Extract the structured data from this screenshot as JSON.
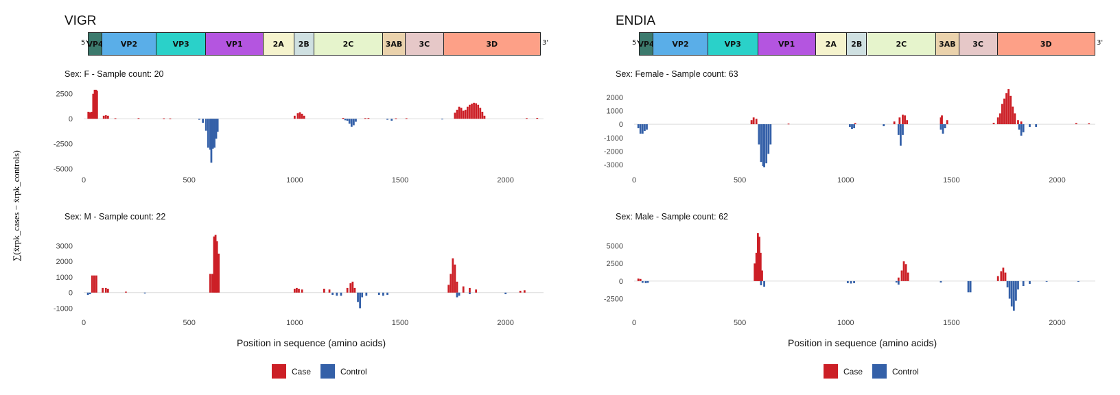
{
  "y_axis_label": "∑(x̄rpk_cases − x̄rpk_controls)",
  "colors": {
    "case": "#cc1f26",
    "control": "#3460a8"
  },
  "genome_map": {
    "end5": "5'",
    "end3": "3'",
    "segments": [
      {
        "label": "VP4",
        "start": 0,
        "end": 69,
        "color": "#3c7a6d"
      },
      {
        "label": "VP2",
        "start": 69,
        "end": 331,
        "color": "#5aaee8"
      },
      {
        "label": "VP3",
        "start": 331,
        "end": 569,
        "color": "#2ad1c9"
      },
      {
        "label": "VP1",
        "start": 569,
        "end": 845,
        "color": "#b455e0"
      },
      {
        "label": "2A",
        "start": 845,
        "end": 993,
        "color": "#f5f3cd"
      },
      {
        "label": "2B",
        "start": 993,
        "end": 1090,
        "color": "#cfe0e1"
      },
      {
        "label": "2C",
        "start": 1090,
        "end": 1420,
        "color": "#e6f4cc"
      },
      {
        "label": "3AB",
        "start": 1420,
        "end": 1530,
        "color": "#ead2ac"
      },
      {
        "label": "3C",
        "start": 1530,
        "end": 1713,
        "color": "#e6c8c8"
      },
      {
        "label": "3D",
        "start": 1713,
        "end": 2180,
        "color": "#fda087"
      }
    ]
  },
  "panels": [
    {
      "title": "VIGR",
      "xlabel": "Position in sequence (amino acids)",
      "legend": [
        {
          "label": "Case",
          "key": "case"
        },
        {
          "label": "Control",
          "key": "control"
        }
      ],
      "subplots": [
        {
          "subtitle": "Sex: F - Sample count: 20",
          "ylim": [
            -5000,
            3100
          ],
          "yticks": [
            2500,
            0,
            -2500,
            -5000
          ]
        },
        {
          "subtitle": "Sex: M - Sample count: 22",
          "ylim": [
            -1200,
            3900
          ],
          "yticks": [
            3000,
            2000,
            1000,
            0,
            -1000
          ]
        }
      ]
    },
    {
      "title": "ENDIA",
      "xlabel": "Position in sequence (amino acids)",
      "legend": [
        {
          "label": "Case",
          "key": "case"
        },
        {
          "label": "Control",
          "key": "control"
        }
      ],
      "subplots": [
        {
          "subtitle": "Sex: Female - Sample count: 63",
          "ylim": [
            -3300,
            2700
          ],
          "yticks": [
            2000,
            1000,
            0,
            -1000,
            -2000,
            -3000
          ]
        },
        {
          "subtitle": "Sex: Male - Sample count: 62",
          "ylim": [
            -4300,
            7000
          ],
          "yticks": [
            5000,
            2500,
            0,
            -2500
          ]
        }
      ]
    }
  ],
  "chart_data": [
    {
      "type": "bar",
      "title": "VIGR",
      "subtitle": "Sex: F - Sample count: 20",
      "xlabel": "",
      "ylabel": "∑(x̄rpk_cases − x̄rpk_controls)",
      "xlim": [
        0,
        2180
      ],
      "xticks": [
        0,
        500,
        1000,
        1500,
        2000
      ],
      "ylim": [
        -5000,
        3100
      ],
      "series": [
        {
          "name": "Case",
          "points": [
            [
              22,
              700
            ],
            [
              30,
              650
            ],
            [
              38,
              700
            ],
            [
              45,
              2500
            ],
            [
              52,
              2900
            ],
            [
              58,
              2900
            ],
            [
              63,
              2800
            ],
            [
              95,
              300
            ],
            [
              105,
              350
            ],
            [
              115,
              300
            ],
            [
              150,
              50
            ],
            [
              260,
              60
            ],
            [
              380,
              40
            ],
            [
              410,
              30
            ],
            [
              1000,
              300
            ],
            [
              1015,
              550
            ],
            [
              1025,
              650
            ],
            [
              1035,
              500
            ],
            [
              1045,
              300
            ],
            [
              1230,
              80
            ],
            [
              1335,
              60
            ],
            [
              1350,
              70
            ],
            [
              1480,
              40
            ],
            [
              1530,
              50
            ],
            [
              1760,
              600
            ],
            [
              1770,
              900
            ],
            [
              1780,
              1200
            ],
            [
              1790,
              1100
            ],
            [
              1800,
              800
            ],
            [
              1810,
              900
            ],
            [
              1820,
              1200
            ],
            [
              1830,
              1400
            ],
            [
              1840,
              1500
            ],
            [
              1850,
              1600
            ],
            [
              1860,
              1550
            ],
            [
              1870,
              1400
            ],
            [
              1880,
              1100
            ],
            [
              1890,
              700
            ],
            [
              1900,
              300
            ],
            [
              2100,
              60
            ],
            [
              2150,
              80
            ]
          ]
        },
        {
          "name": "Control",
          "points": [
            [
              548,
              -100
            ],
            [
              565,
              -400
            ],
            [
              580,
              -1200
            ],
            [
              590,
              -2900
            ],
            [
              600,
              -3100
            ],
            [
              605,
              -4400
            ],
            [
              612,
              -3000
            ],
            [
              620,
              -2900
            ],
            [
              628,
              -2000
            ],
            [
              635,
              -1300
            ],
            [
              1240,
              -150
            ],
            [
              1250,
              -200
            ],
            [
              1260,
              -500
            ],
            [
              1270,
              -800
            ],
            [
              1280,
              -650
            ],
            [
              1290,
              -300
            ],
            [
              1440,
              -100
            ],
            [
              1460,
              -200
            ],
            [
              1700,
              -60
            ]
          ]
        }
      ]
    },
    {
      "type": "bar",
      "title": "VIGR",
      "subtitle": "Sex: M - Sample count: 22",
      "xlabel": "Position in sequence (amino acids)",
      "ylabel": "∑(x̄rpk_cases − x̄rpk_controls)",
      "xlim": [
        0,
        2180
      ],
      "xticks": [
        0,
        500,
        1000,
        1500,
        2000
      ],
      "ylim": [
        -1200,
        3900
      ],
      "series": [
        {
          "name": "Case",
          "points": [
            [
              40,
              1100
            ],
            [
              50,
              1100
            ],
            [
              60,
              1100
            ],
            [
              90,
              300
            ],
            [
              105,
              300
            ],
            [
              115,
              250
            ],
            [
              200,
              60
            ],
            [
              600,
              1200
            ],
            [
              610,
              1200
            ],
            [
              618,
              3600
            ],
            [
              625,
              3700
            ],
            [
              632,
              3300
            ],
            [
              640,
              2500
            ],
            [
              1000,
              250
            ],
            [
              1010,
              300
            ],
            [
              1020,
              250
            ],
            [
              1035,
              200
            ],
            [
              1140,
              250
            ],
            [
              1165,
              200
            ],
            [
              1250,
              300
            ],
            [
              1265,
              600
            ],
            [
              1275,
              700
            ],
            [
              1285,
              300
            ],
            [
              1730,
              500
            ],
            [
              1740,
              1200
            ],
            [
              1750,
              2200
            ],
            [
              1760,
              1800
            ],
            [
              1770,
              700
            ],
            [
              1800,
              400
            ],
            [
              1830,
              300
            ],
            [
              1860,
              200
            ],
            [
              2070,
              120
            ],
            [
              2090,
              150
            ]
          ]
        },
        {
          "name": "Control",
          "points": [
            [
              20,
              -150
            ],
            [
              30,
              -100
            ],
            [
              290,
              -50
            ],
            [
              1180,
              -150
            ],
            [
              1200,
              -200
            ],
            [
              1220,
              -200
            ],
            [
              1300,
              -600
            ],
            [
              1310,
              -1000
            ],
            [
              1320,
              -300
            ],
            [
              1340,
              -200
            ],
            [
              1400,
              -150
            ],
            [
              1420,
              -200
            ],
            [
              1440,
              -150
            ],
            [
              1770,
              -300
            ],
            [
              1780,
              -200
            ],
            [
              1830,
              -100
            ],
            [
              2000,
              -100
            ]
          ]
        }
      ]
    },
    {
      "type": "bar",
      "title": "ENDIA",
      "subtitle": "Sex: Female - Sample count: 63",
      "xlabel": "",
      "ylabel": "∑(x̄rpk_cases − x̄rpk_controls)",
      "xlim": [
        0,
        2180
      ],
      "xticks": [
        0,
        500,
        1000,
        1500,
        2000
      ],
      "ylim": [
        -3300,
        2700
      ],
      "series": [
        {
          "name": "Case",
          "points": [
            [
              555,
              300
            ],
            [
              565,
              500
            ],
            [
              578,
              400
            ],
            [
              730,
              40
            ],
            [
              1045,
              80
            ],
            [
              1230,
              200
            ],
            [
              1255,
              500
            ],
            [
              1270,
              700
            ],
            [
              1280,
              650
            ],
            [
              1290,
              300
            ],
            [
              1450,
              500
            ],
            [
              1455,
              650
            ],
            [
              1480,
              300
            ],
            [
              1700,
              100
            ],
            [
              1720,
              500
            ],
            [
              1730,
              800
            ],
            [
              1740,
              1500
            ],
            [
              1750,
              1900
            ],
            [
              1760,
              2300
            ],
            [
              1770,
              2600
            ],
            [
              1780,
              2100
            ],
            [
              1790,
              1300
            ],
            [
              1800,
              800
            ],
            [
              1815,
              300
            ],
            [
              1830,
              200
            ],
            [
              2090,
              80
            ],
            [
              2150,
              60
            ]
          ]
        },
        {
          "name": "Control",
          "points": [
            [
              20,
              -300
            ],
            [
              30,
              -700
            ],
            [
              40,
              -700
            ],
            [
              50,
              -500
            ],
            [
              60,
              -400
            ],
            [
              590,
              -1500
            ],
            [
              600,
              -2800
            ],
            [
              610,
              -3100
            ],
            [
              615,
              -3200
            ],
            [
              625,
              -2900
            ],
            [
              635,
              -2200
            ],
            [
              645,
              -1500
            ],
            [
              1020,
              -200
            ],
            [
              1030,
              -350
            ],
            [
              1040,
              -300
            ],
            [
              1180,
              -150
            ],
            [
              1250,
              -800
            ],
            [
              1260,
              -1600
            ],
            [
              1270,
              -800
            ],
            [
              1450,
              -400
            ],
            [
              1460,
              -700
            ],
            [
              1470,
              -300
            ],
            [
              1820,
              -400
            ],
            [
              1830,
              -850
            ],
            [
              1840,
              -600
            ],
            [
              1870,
              -200
            ],
            [
              1900,
              -200
            ]
          ]
        }
      ]
    },
    {
      "type": "bar",
      "title": "ENDIA",
      "subtitle": "Sex: Male - Sample count: 62",
      "xlabel": "Position in sequence (amino acids)",
      "ylabel": "∑(x̄rpk_cases − x̄rpk_controls)",
      "xlim": [
        0,
        2180
      ],
      "xticks": [
        0,
        500,
        1000,
        1500,
        2000
      ],
      "ylim": [
        -4300,
        7000
      ],
      "series": [
        {
          "name": "Case",
          "points": [
            [
              20,
              350
            ],
            [
              30,
              300
            ],
            [
              570,
              2500
            ],
            [
              578,
              4000
            ],
            [
              585,
              6800
            ],
            [
              592,
              6300
            ],
            [
              598,
              4000
            ],
            [
              605,
              1500
            ],
            [
              1250,
              500
            ],
            [
              1265,
              1500
            ],
            [
              1275,
              2800
            ],
            [
              1285,
              2400
            ],
            [
              1295,
              1200
            ],
            [
              1720,
              700
            ],
            [
              1735,
              1400
            ],
            [
              1745,
              1900
            ],
            [
              1755,
              1200
            ]
          ]
        },
        {
          "name": "Control",
          "points": [
            [
              40,
              -250
            ],
            [
              55,
              -300
            ],
            [
              65,
              -250
            ],
            [
              600,
              -600
            ],
            [
              615,
              -800
            ],
            [
              1010,
              -300
            ],
            [
              1025,
              -350
            ],
            [
              1040,
              -300
            ],
            [
              1240,
              -200
            ],
            [
              1250,
              -500
            ],
            [
              1450,
              -200
            ],
            [
              1580,
              -1600
            ],
            [
              1590,
              -1600
            ],
            [
              1765,
              -900
            ],
            [
              1775,
              -2500
            ],
            [
              1785,
              -3600
            ],
            [
              1795,
              -4200
            ],
            [
              1805,
              -2800
            ],
            [
              1815,
              -1200
            ],
            [
              1840,
              -700
            ],
            [
              1870,
              -400
            ],
            [
              1950,
              -100
            ],
            [
              2100,
              -100
            ]
          ]
        }
      ]
    }
  ]
}
